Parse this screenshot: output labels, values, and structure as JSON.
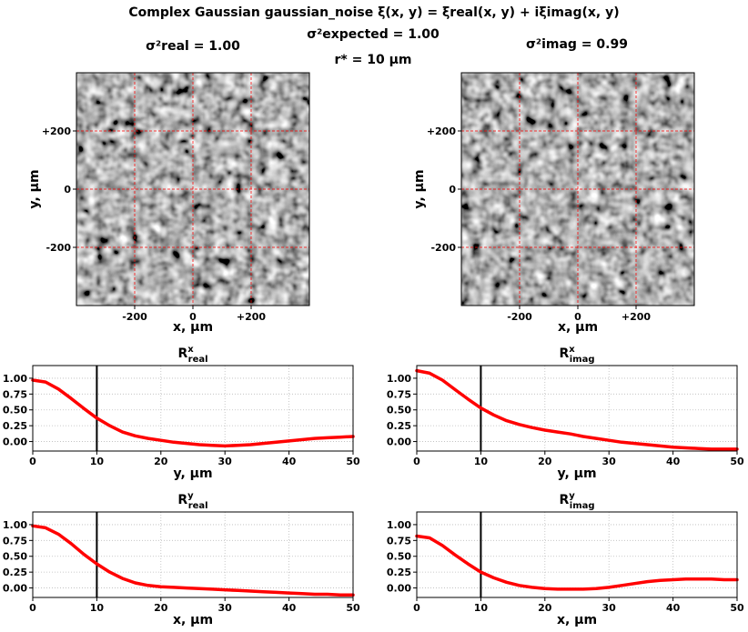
{
  "figure": {
    "title": "Complex Gaussian gaussian_noise ξ(x, y) = ξreal(x, y) + iξimag(x, y)",
    "sigma_real": "σ²real = 1.00",
    "sigma_expected": "σ²expected = 1.00",
    "r_star": "r* = 10 μm",
    "sigma_imag": "σ²imag = 0.99"
  },
  "colors": {
    "curve": "#ff0000",
    "marker": "#000000",
    "grid": "#bbbbbb",
    "crosshair": "#ff0000"
  },
  "chart_data": [
    {
      "type": "heatmap",
      "id": "noise-real",
      "xlabel": "x, μm",
      "ylabel": "y, μm",
      "xlim": [
        -400,
        400
      ],
      "ylim": [
        -400,
        400
      ],
      "xticks": [
        -200,
        0,
        200
      ],
      "xtick_labels": [
        "-200",
        "0",
        "+200"
      ],
      "yticks": [
        200,
        0,
        -200
      ],
      "ytick_labels": [
        "+200",
        "0",
        "-200"
      ],
      "grid": true,
      "colormap": "gray"
    },
    {
      "type": "heatmap",
      "id": "noise-imag",
      "xlabel": "x, μm",
      "ylabel": "y, μm",
      "xlim": [
        -400,
        400
      ],
      "ylim": [
        -400,
        400
      ],
      "xticks": [
        -200,
        0,
        200
      ],
      "xtick_labels": [
        "-200",
        "0",
        "+200"
      ],
      "yticks": [
        200,
        0,
        -200
      ],
      "ytick_labels": [
        "+200",
        "0",
        "-200"
      ],
      "grid": true,
      "colormap": "gray"
    },
    {
      "type": "line",
      "id": "rx-real",
      "title": "R^x_real",
      "xlabel": "y, μm",
      "xlim": [
        0,
        50
      ],
      "ylim": [
        -0.15,
        1.2
      ],
      "xticks": [
        0,
        10,
        20,
        30,
        40,
        50
      ],
      "yticks": [
        0,
        0.25,
        0.5,
        0.75,
        1.0
      ],
      "ytick_labels": [
        "0.00",
        "0.25",
        "0.50",
        "0.75",
        "1.00"
      ],
      "vline": 10,
      "grid": true,
      "x": [
        0,
        2,
        4,
        6,
        8,
        10,
        12,
        14,
        16,
        18,
        20,
        22,
        24,
        26,
        28,
        30,
        32,
        34,
        36,
        38,
        40,
        42,
        44,
        46,
        48,
        50
      ],
      "y": [
        0.97,
        0.94,
        0.83,
        0.68,
        0.52,
        0.37,
        0.25,
        0.15,
        0.09,
        0.05,
        0.02,
        -0.01,
        -0.03,
        -0.05,
        -0.06,
        -0.07,
        -0.06,
        -0.05,
        -0.03,
        -0.01,
        0.01,
        0.03,
        0.05,
        0.06,
        0.07,
        0.08
      ]
    },
    {
      "type": "line",
      "id": "rx-imag",
      "title": "R^x_imag",
      "xlabel": "y, μm",
      "xlim": [
        0,
        50
      ],
      "ylim": [
        -0.15,
        1.2
      ],
      "xticks": [
        0,
        10,
        20,
        30,
        40,
        50
      ],
      "yticks": [
        0,
        0.25,
        0.5,
        0.75,
        1.0
      ],
      "ytick_labels": [
        "0.00",
        "0.25",
        "0.50",
        "0.75",
        "1.00"
      ],
      "vline": 10,
      "grid": true,
      "x": [
        0,
        2,
        4,
        6,
        8,
        10,
        12,
        14,
        16,
        18,
        20,
        22,
        24,
        26,
        28,
        30,
        32,
        34,
        36,
        38,
        40,
        42,
        44,
        46,
        48,
        50
      ],
      "y": [
        1.12,
        1.08,
        0.97,
        0.82,
        0.67,
        0.53,
        0.42,
        0.33,
        0.27,
        0.22,
        0.18,
        0.15,
        0.12,
        0.08,
        0.05,
        0.02,
        -0.01,
        -0.03,
        -0.05,
        -0.07,
        -0.09,
        -0.1,
        -0.11,
        -0.12,
        -0.12,
        -0.12
      ]
    },
    {
      "type": "line",
      "id": "ry-real",
      "title": "R^y_real",
      "xlabel": "x, μm",
      "xlim": [
        0,
        50
      ],
      "ylim": [
        -0.15,
        1.2
      ],
      "xticks": [
        0,
        10,
        20,
        30,
        40,
        50
      ],
      "yticks": [
        0,
        0.25,
        0.5,
        0.75,
        1.0
      ],
      "ytick_labels": [
        "0.00",
        "0.25",
        "0.50",
        "0.75",
        "1.00"
      ],
      "vline": 10,
      "grid": true,
      "x": [
        0,
        2,
        4,
        6,
        8,
        10,
        12,
        14,
        16,
        18,
        20,
        22,
        24,
        26,
        28,
        30,
        32,
        34,
        36,
        38,
        40,
        42,
        44,
        46,
        48,
        50
      ],
      "y": [
        0.98,
        0.95,
        0.85,
        0.7,
        0.53,
        0.38,
        0.25,
        0.15,
        0.08,
        0.04,
        0.02,
        0.01,
        0.0,
        -0.01,
        -0.02,
        -0.03,
        -0.04,
        -0.05,
        -0.06,
        -0.07,
        -0.08,
        -0.09,
        -0.1,
        -0.1,
        -0.11,
        -0.11
      ]
    },
    {
      "type": "line",
      "id": "ry-imag",
      "title": "R^y_imag",
      "xlabel": "x, μm",
      "xlim": [
        0,
        50
      ],
      "ylim": [
        -0.15,
        1.2
      ],
      "xticks": [
        0,
        10,
        20,
        30,
        40,
        50
      ],
      "yticks": [
        0,
        0.25,
        0.5,
        0.75,
        1.0
      ],
      "ytick_labels": [
        "0.00",
        "0.25",
        "0.50",
        "0.75",
        "1.00"
      ],
      "vline": 10,
      "grid": true,
      "x": [
        0,
        2,
        4,
        6,
        8,
        10,
        12,
        14,
        16,
        18,
        20,
        22,
        24,
        26,
        28,
        30,
        32,
        34,
        36,
        38,
        40,
        42,
        44,
        46,
        48,
        50
      ],
      "y": [
        0.82,
        0.79,
        0.67,
        0.52,
        0.38,
        0.25,
        0.16,
        0.09,
        0.04,
        0.01,
        -0.01,
        -0.02,
        -0.02,
        -0.02,
        -0.01,
        0.01,
        0.04,
        0.07,
        0.1,
        0.12,
        0.13,
        0.14,
        0.14,
        0.14,
        0.13,
        0.13
      ]
    }
  ]
}
